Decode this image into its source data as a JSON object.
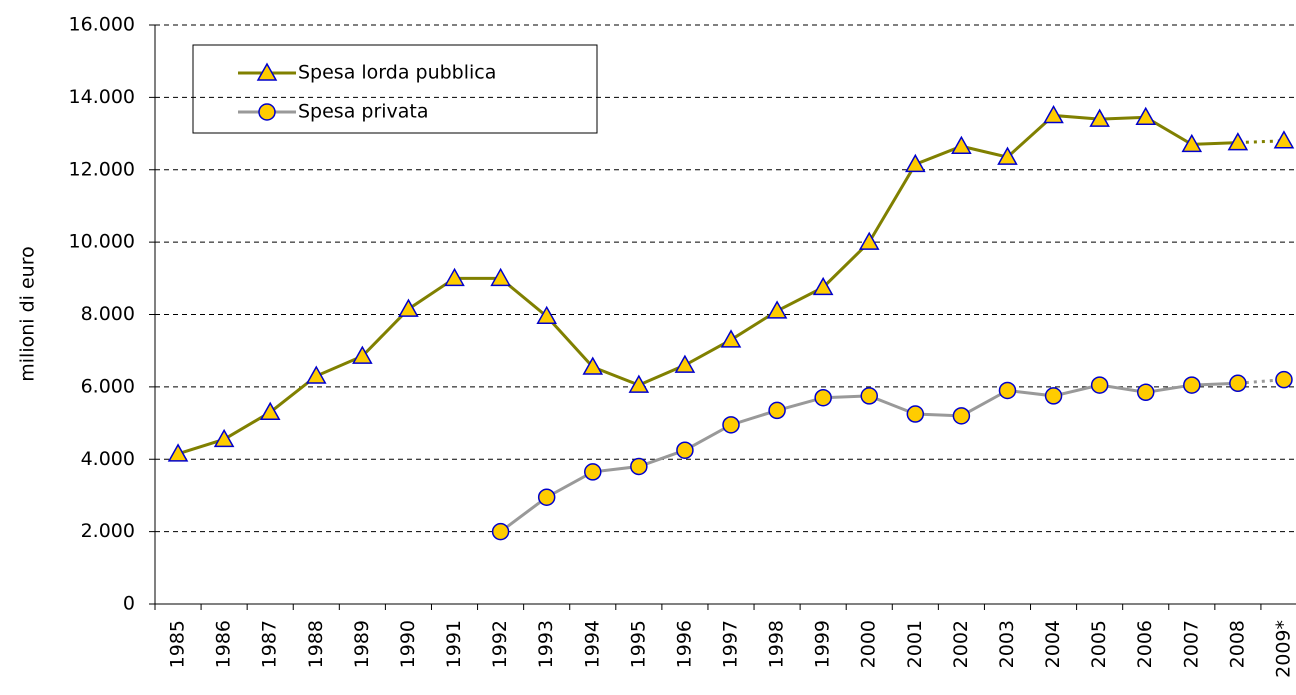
{
  "chart_data": {
    "type": "line",
    "ylabel": "milioni di euro",
    "categories": [
      "1985",
      "1986",
      "1987",
      "1988",
      "1989",
      "1990",
      "1991",
      "1992",
      "1993",
      "1994",
      "1995",
      "1996",
      "1997",
      "1998",
      "1999",
      "2000",
      "2001",
      "2002",
      "2003",
      "2004",
      "2005",
      "2006",
      "2007",
      "2008",
      "2009*"
    ],
    "series": [
      {
        "name": "Spesa lorda pubblica",
        "color": "#808000",
        "marker": "triangle",
        "values": [
          4150,
          4550,
          5300,
          6300,
          6850,
          8150,
          9000,
          9000,
          7950,
          6550,
          6050,
          6600,
          7300,
          8100,
          8750,
          10000,
          12150,
          12650,
          12350,
          13500,
          13400,
          13450,
          12700,
          12750,
          12800
        ]
      },
      {
        "name": "Spesa privata",
        "color": "#999999",
        "marker": "circle",
        "values": [
          null,
          null,
          null,
          null,
          null,
          null,
          null,
          2000,
          2950,
          3650,
          3800,
          4250,
          4950,
          5350,
          5700,
          5750,
          5250,
          5200,
          5900,
          5750,
          6050,
          5850,
          6050,
          6100,
          6200
        ]
      }
    ],
    "marker_fill": "#ffcc00",
    "marker_stroke": "#0000cc",
    "ylim": [
      0,
      16000
    ],
    "yticks": [
      0,
      {
        "value": 2000,
        "label": "2.000"
      },
      {
        "value": 4000,
        "label": "4.000"
      },
      {
        "value": 6000,
        "label": "6.000"
      },
      {
        "value": 8000,
        "label": "8.000"
      },
      {
        "value": 10000,
        "label": "10.000"
      },
      {
        "value": 12000,
        "label": "12.000"
      },
      {
        "value": 14000,
        "label": "14.000"
      },
      {
        "value": 16000,
        "label": "16.000"
      }
    ],
    "grid": true
  }
}
